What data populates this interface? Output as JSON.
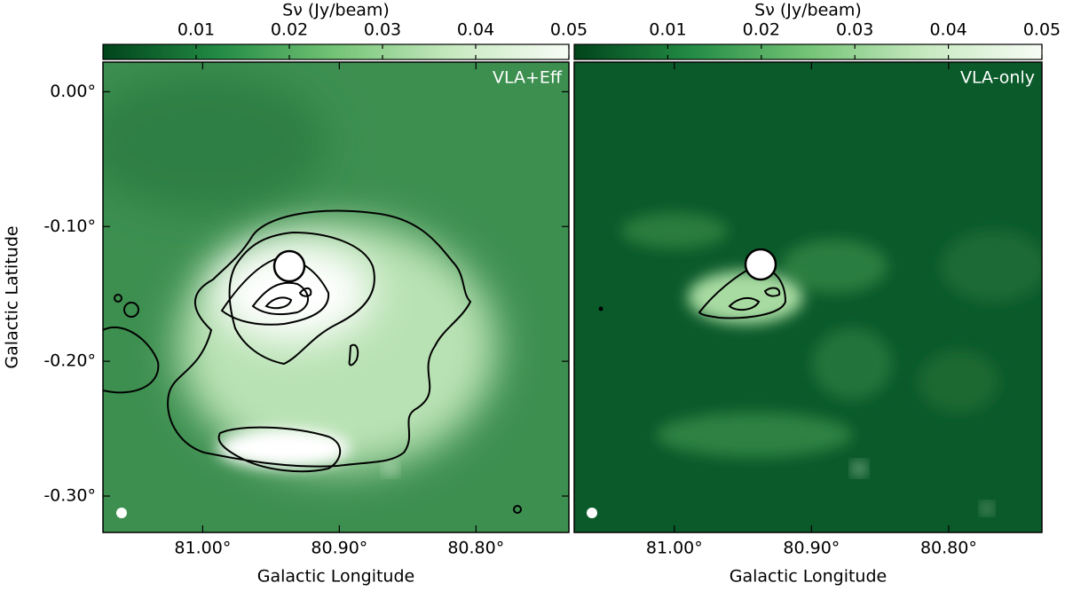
{
  "chart_data": [
    {
      "type": "image",
      "label": "VLA+Eff",
      "colorbar_label": "Sν (Jy/beam)",
      "colorbar_lim": [
        0,
        0.05
      ],
      "colorbar_ticks": [
        0.01,
        0.02,
        0.03,
        0.04,
        0.05
      ],
      "xlabel": "Galactic Longitude",
      "ylabel": "Galactic Latitude",
      "xlim": [
        81.073,
        80.732
      ],
      "ylim": [
        -0.327,
        0.022
      ],
      "xticks": [
        {
          "value": 81.0,
          "label": "81.00°"
        },
        {
          "value": 80.9,
          "label": "80.90°"
        },
        {
          "value": 80.8,
          "label": "80.80°"
        }
      ],
      "yticks": [
        {
          "value": 0.0,
          "label": "0.00°"
        },
        {
          "value": -0.1,
          "label": "-0.10°"
        },
        {
          "value": -0.2,
          "label": "-0.20°"
        },
        {
          "value": -0.3,
          "label": "-0.30°"
        }
      ]
    },
    {
      "type": "image",
      "label": "VLA-only",
      "colorbar_label": "Sν (Jy/beam)",
      "colorbar_lim": [
        0,
        0.05
      ],
      "colorbar_ticks": [
        0.01,
        0.02,
        0.03,
        0.04,
        0.05
      ],
      "xlabel": "Galactic Longitude",
      "xlim": [
        81.073,
        80.732
      ],
      "ylim": [
        -0.327,
        0.022
      ],
      "xticks": [
        {
          "value": 81.0,
          "label": "81.00°"
        },
        {
          "value": 80.9,
          "label": "80.90°"
        },
        {
          "value": 80.8,
          "label": "80.80°"
        }
      ]
    }
  ]
}
